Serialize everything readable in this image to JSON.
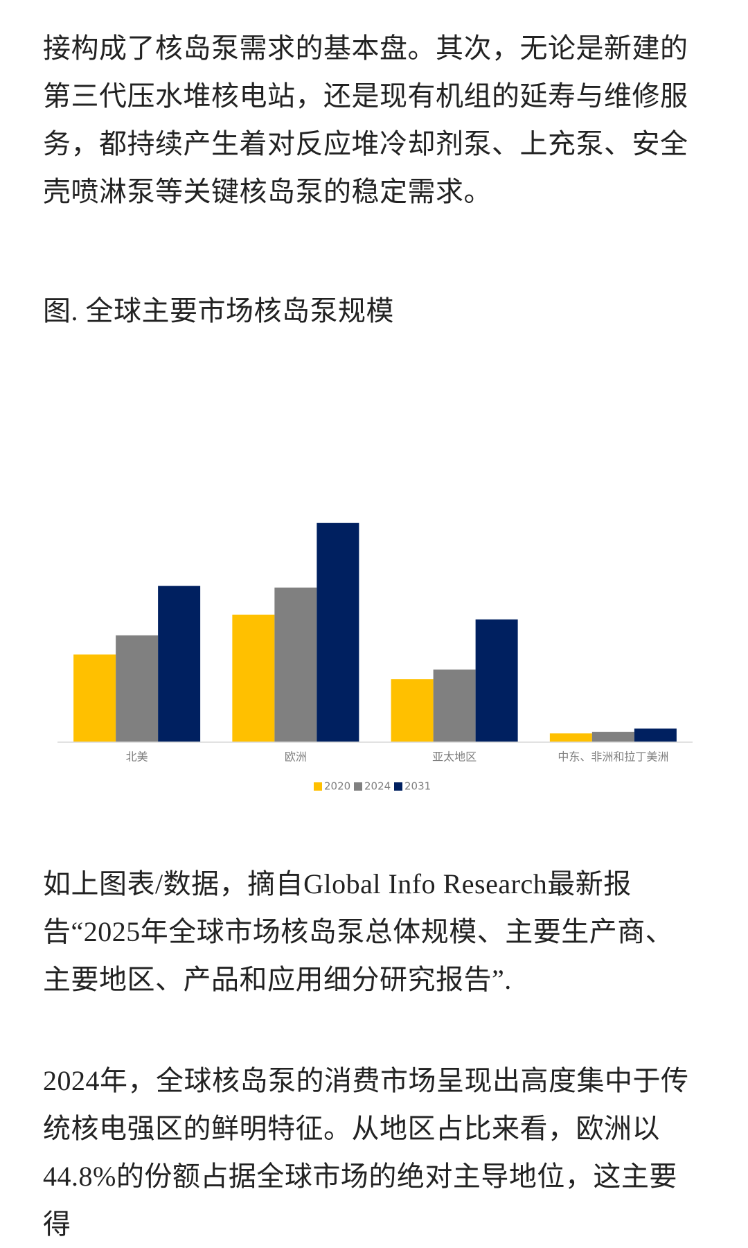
{
  "intro_text": "接构成了核岛泵需求的基本盘。其次，无论是新建的第三代压水堆核电站，还是现有机组的延寿与维修服务，都持续产生着对反应堆冷却剂泵、上充泵、安全壳喷淋泵等关键核岛泵的稳定需求。",
  "figure_caption": "图. 全球主要市场核岛泵规模",
  "chart_data": {
    "type": "bar",
    "categories": [
      "北美",
      "欧洲",
      "亚太地区",
      "中东、非洲和拉丁美洲"
    ],
    "series": [
      {
        "name": "2020",
        "color": "#FFC000",
        "values": [
          110,
          160,
          79,
          11
        ]
      },
      {
        "name": "2024",
        "color": "#808080",
        "values": [
          134,
          194,
          91,
          13
        ]
      },
      {
        "name": "2031",
        "color": "#002060",
        "values": [
          196,
          275,
          154,
          17
        ]
      }
    ],
    "ylim": [
      0,
      280
    ],
    "legend": "bottom"
  },
  "source_text": "如上图表/数据，摘自Global Info Research最新报告“2025年全球市场核岛泵总体规模、主要生产商、主要地区、产品和应用细分研究报告”.",
  "body_text": "2024年，全球核岛泵的消费市场呈现出高度集中于传统核电强区的鲜明特征。从地区占比来看，欧洲以44.8%的份额占据全球市场的绝对主导地位，这主要得"
}
